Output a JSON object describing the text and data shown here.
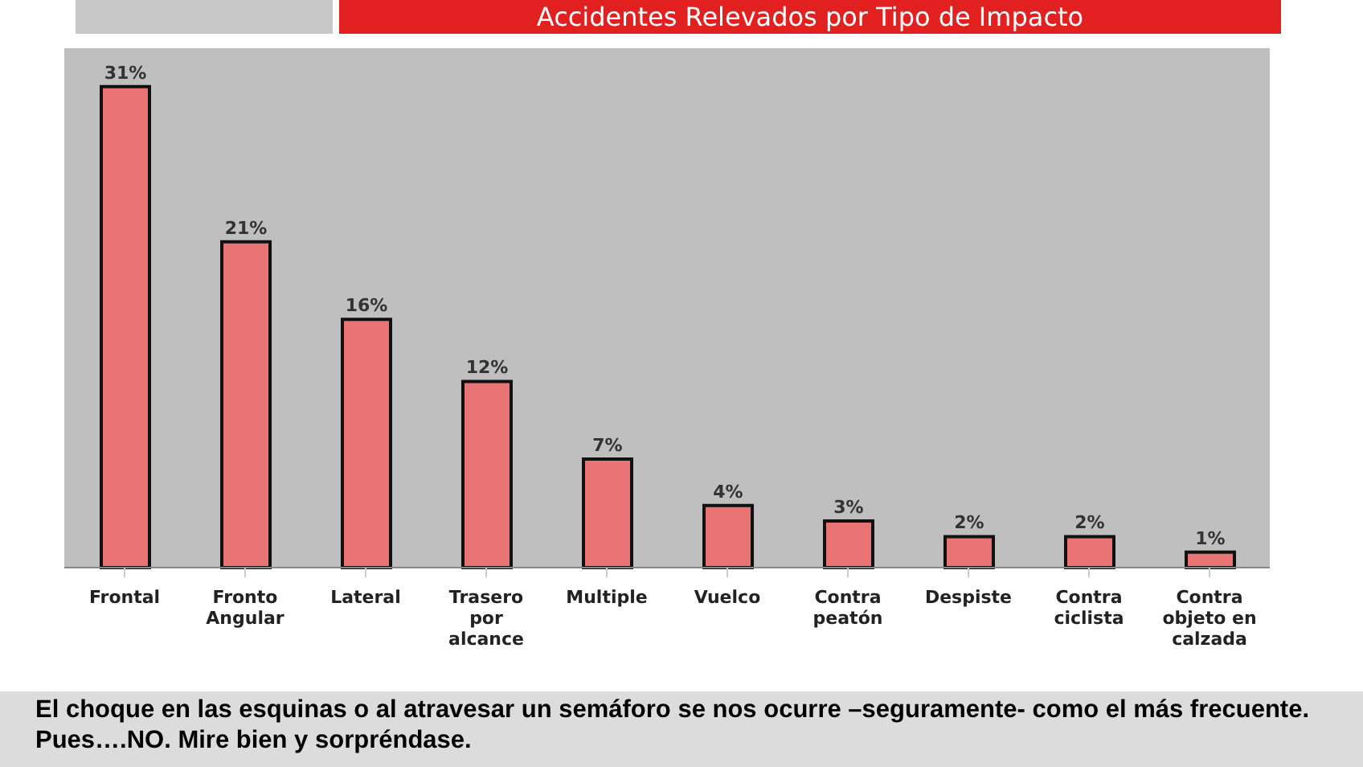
{
  "chart_data": {
    "type": "bar",
    "title": "Accidentes Relevados por Tipo de Impacto",
    "categories": [
      "Frontal",
      "Fronto Angular",
      "Lateral",
      "Trasero por alcance",
      "Multiple",
      "Vuelco",
      "Contra peatón",
      "Despiste",
      "Contra ciclista",
      "Contra objeto en calzada"
    ],
    "values": [
      31,
      21,
      16,
      12,
      7,
      4,
      3,
      2,
      2,
      1
    ],
    "value_labels": [
      "31%",
      "21%",
      "16%",
      "12%",
      "7%",
      "4%",
      "3%",
      "2%",
      "2%",
      "1%"
    ],
    "color": "#e87474",
    "annotations": [
      "El choque en las esquinas o al atravesar un semáforo se nos ocurre –seguramente- como el más frecuente. Pues….NO. Mire bien y sorpréndase."
    ]
  }
}
